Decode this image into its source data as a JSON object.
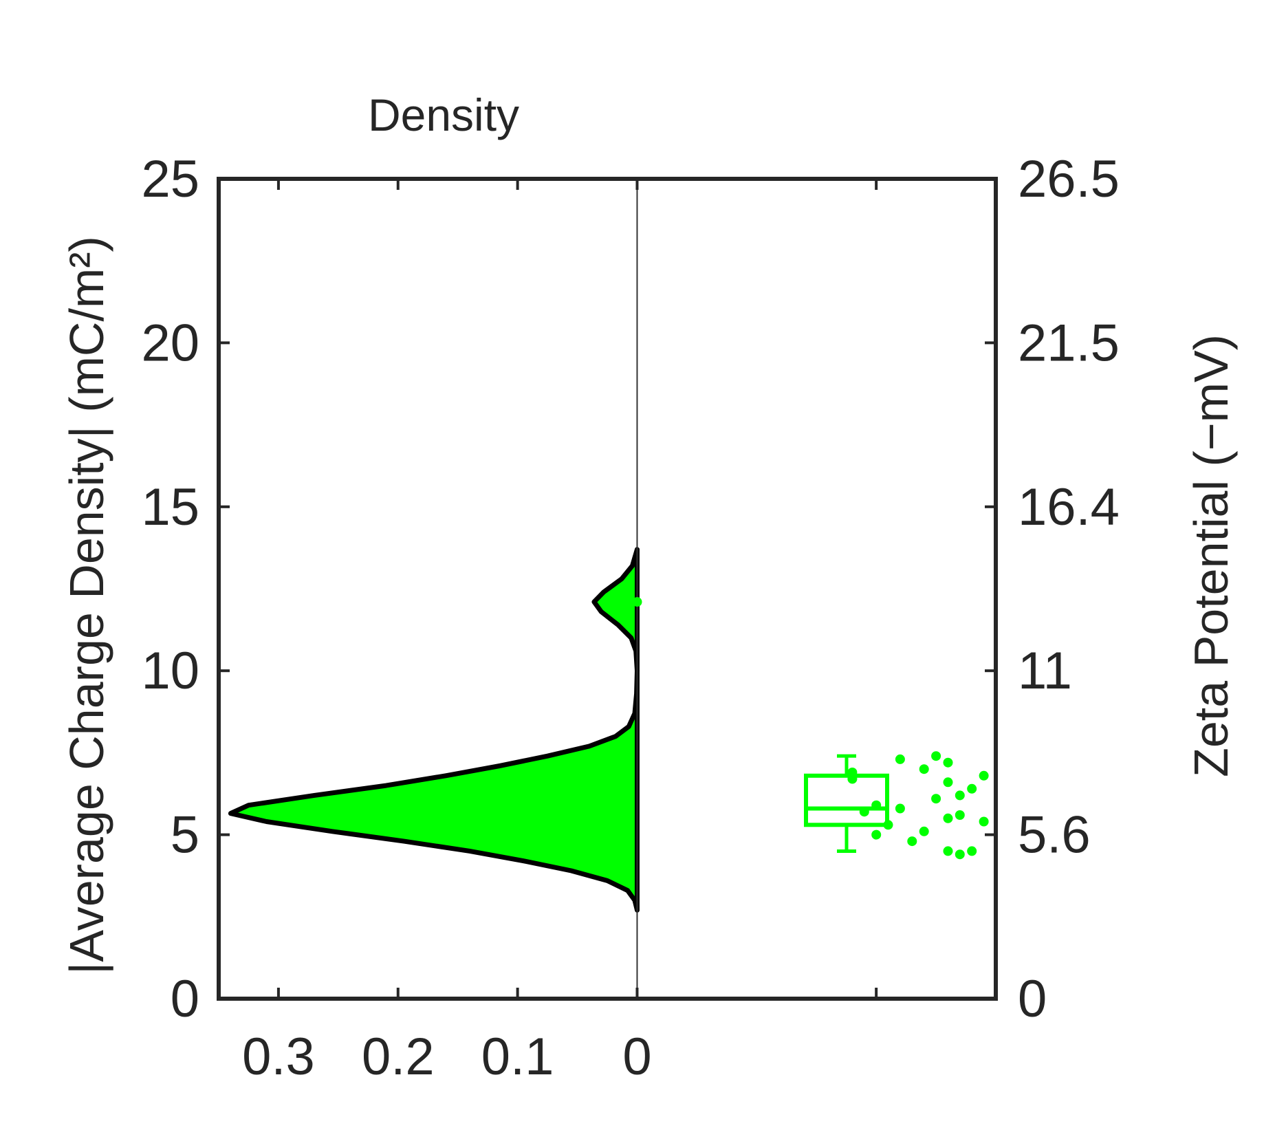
{
  "chart_data": {
    "type": "violin",
    "title": "Density",
    "ylabel_left": "|Average Charge Density| (mC/m²)",
    "ylabel_right": "Zeta Potential (−mV)",
    "xlabel": "",
    "colors": {
      "fill": "#00ff00",
      "outline": "#000000",
      "markers": "#00ff00",
      "axes": "#262626"
    },
    "density_axis": {
      "range": [
        0.35,
        -0.3
      ],
      "ticks": [
        0.3,
        0.2,
        0.1,
        0
      ],
      "tick_labels": [
        "0.3",
        "0.2",
        "0.1",
        "0"
      ],
      "reversed": true
    },
    "left_axis": {
      "range": [
        0,
        25
      ],
      "ticks": [
        0,
        5,
        10,
        15,
        20,
        25
      ],
      "tick_labels": [
        "0",
        "5",
        "10",
        "15",
        "20",
        "25"
      ]
    },
    "right_axis": {
      "tick_values_at_left": [
        0,
        5,
        10,
        15,
        20,
        25
      ],
      "tick_labels": [
        "0",
        "5.6",
        "11",
        "16.4",
        "21.5",
        "26.5"
      ]
    },
    "density_curve": [
      {
        "y": 2.7,
        "d": 0.0
      },
      {
        "y": 3.0,
        "d": 0.002
      },
      {
        "y": 3.3,
        "d": 0.008
      },
      {
        "y": 3.6,
        "d": 0.025
      },
      {
        "y": 3.9,
        "d": 0.055
      },
      {
        "y": 4.2,
        "d": 0.095
      },
      {
        "y": 4.5,
        "d": 0.14
      },
      {
        "y": 4.8,
        "d": 0.195
      },
      {
        "y": 5.1,
        "d": 0.255
      },
      {
        "y": 5.4,
        "d": 0.31
      },
      {
        "y": 5.65,
        "d": 0.34
      },
      {
        "y": 5.9,
        "d": 0.325
      },
      {
        "y": 6.2,
        "d": 0.27
      },
      {
        "y": 6.5,
        "d": 0.21
      },
      {
        "y": 6.8,
        "d": 0.16
      },
      {
        "y": 7.1,
        "d": 0.115
      },
      {
        "y": 7.4,
        "d": 0.075
      },
      {
        "y": 7.7,
        "d": 0.04
      },
      {
        "y": 8.0,
        "d": 0.018
      },
      {
        "y": 8.3,
        "d": 0.007
      },
      {
        "y": 8.7,
        "d": 0.002
      },
      {
        "y": 9.3,
        "d": 0.0005
      },
      {
        "y": 10.0,
        "d": 0.0
      },
      {
        "y": 10.6,
        "d": 0.001
      },
      {
        "y": 11.0,
        "d": 0.005
      },
      {
        "y": 11.4,
        "d": 0.016
      },
      {
        "y": 11.8,
        "d": 0.03
      },
      {
        "y": 12.1,
        "d": 0.036
      },
      {
        "y": 12.4,
        "d": 0.028
      },
      {
        "y": 12.8,
        "d": 0.013
      },
      {
        "y": 13.2,
        "d": 0.004
      },
      {
        "y": 13.7,
        "d": 0.0
      }
    ],
    "boxplot": {
      "whisker_low": 4.5,
      "q1": 5.3,
      "median": 5.8,
      "q3": 6.8,
      "whisker_high": 7.4
    },
    "points": [
      {
        "x": 0.0,
        "y": 12.1
      },
      {
        "x": -0.22,
        "y": 7.3
      },
      {
        "x": -0.25,
        "y": 7.4
      },
      {
        "x": -0.26,
        "y": 7.2
      },
      {
        "x": -0.18,
        "y": 6.9
      },
      {
        "x": -0.29,
        "y": 6.8
      },
      {
        "x": -0.26,
        "y": 6.6
      },
      {
        "x": -0.28,
        "y": 6.4
      },
      {
        "x": -0.27,
        "y": 6.2
      },
      {
        "x": -0.25,
        "y": 6.1
      },
      {
        "x": -0.2,
        "y": 5.9
      },
      {
        "x": -0.22,
        "y": 5.8
      },
      {
        "x": -0.19,
        "y": 5.7
      },
      {
        "x": -0.27,
        "y": 5.6
      },
      {
        "x": -0.26,
        "y": 5.5
      },
      {
        "x": -0.21,
        "y": 5.3
      },
      {
        "x": -0.24,
        "y": 5.1
      },
      {
        "x": -0.2,
        "y": 5.0
      },
      {
        "x": -0.23,
        "y": 4.8
      },
      {
        "x": -0.26,
        "y": 4.5
      },
      {
        "x": -0.27,
        "y": 4.4
      },
      {
        "x": -0.28,
        "y": 4.5
      },
      {
        "x": -0.18,
        "y": 6.7
      },
      {
        "x": -0.24,
        "y": 7.0
      },
      {
        "x": -0.29,
        "y": 5.4
      }
    ]
  }
}
